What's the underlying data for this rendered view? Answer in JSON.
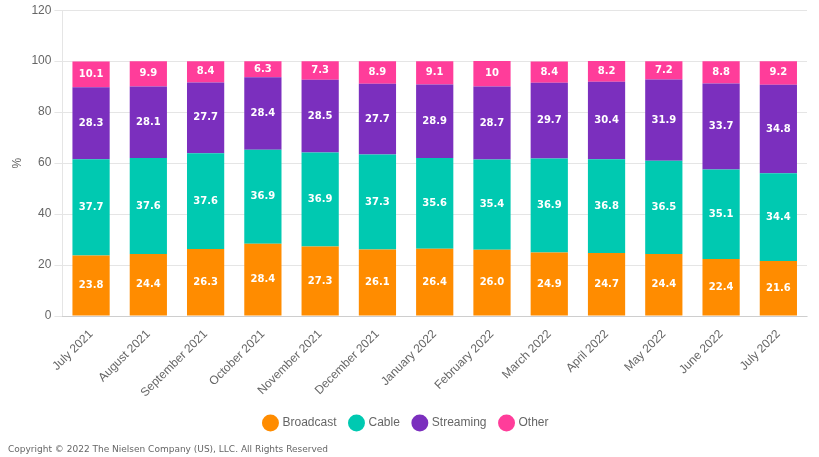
{
  "chart_data": {
    "type": "bar",
    "stacked": true,
    "categories": [
      "July 2021",
      "August 2021",
      "September 2021",
      "October 2021",
      "November 2021",
      "December 2021",
      "January 2022",
      "February 2022",
      "March 2022",
      "April 2022",
      "May 2022",
      "June 2022",
      "July 2022"
    ],
    "series": [
      {
        "name": "Broadcast",
        "color": "#FF8C00",
        "values": [
          23.8,
          24.4,
          26.3,
          28.4,
          27.3,
          26.1,
          26.4,
          26.0,
          24.9,
          24.7,
          24.4,
          22.4,
          21.6
        ],
        "value_labels": [
          "23.8",
          "24.4",
          "26.3",
          "28.4",
          "27.3",
          "26.1",
          "26.4",
          "26.0",
          "24.9",
          "24.7",
          "24.4",
          "22.4",
          "21.6"
        ]
      },
      {
        "name": "Cable",
        "color": "#00C9B1",
        "values": [
          37.7,
          37.6,
          37.6,
          36.9,
          36.9,
          37.3,
          35.6,
          35.4,
          36.9,
          36.8,
          36.5,
          35.1,
          34.4
        ]
      },
      {
        "name": "Streaming",
        "color": "#7B2FBE",
        "values": [
          28.3,
          28.1,
          27.7,
          28.4,
          28.5,
          27.7,
          28.9,
          28.7,
          29.7,
          30.4,
          31.9,
          33.7,
          34.8
        ]
      },
      {
        "name": "Other",
        "color": "#FF3D9A",
        "values": [
          10.1,
          9.9,
          8.4,
          6.3,
          7.3,
          8.9,
          9.1,
          10.0,
          8.4,
          8.2,
          7.2,
          8.8,
          9.2
        ]
      }
    ],
    "y_label": "%",
    "ylim": [
      0,
      120
    ],
    "yticks": [
      0,
      20,
      40,
      60,
      80,
      100,
      120
    ],
    "grid": true,
    "legend": "bottom",
    "data_labels": true,
    "annotations": [
      "Copyright © 2022 The Nielsen Company (US), LLC. All Rights Reserved"
    ]
  }
}
